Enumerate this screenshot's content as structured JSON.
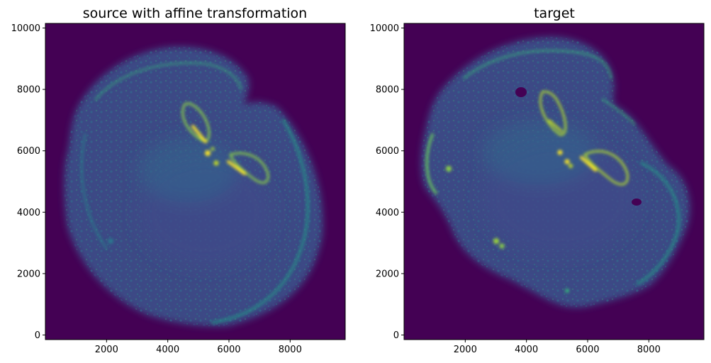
{
  "chart_data": [
    {
      "type": "heatmap",
      "title": "source with affine transformation",
      "colormap": "viridis",
      "background_color": "#440154",
      "xlabel": "",
      "ylabel": "",
      "xlim": [
        0,
        9800
      ],
      "ylim": [
        -150,
        10150
      ],
      "x_ticks": [
        2000,
        4000,
        6000,
        8000
      ],
      "y_ticks": [
        0,
        2000,
        4000,
        6000,
        8000,
        10000
      ],
      "tick_labels_x": [
        "2000",
        "4000",
        "6000",
        "8000"
      ],
      "tick_labels_y": [
        "0",
        "2000",
        "4000",
        "6000",
        "8000",
        "10000"
      ],
      "grid": false
    },
    {
      "type": "heatmap",
      "title": "target",
      "colormap": "viridis",
      "background_color": "#440154",
      "xlabel": "",
      "ylabel": "",
      "xlim": [
        0,
        9800
      ],
      "ylim": [
        -150,
        10150
      ],
      "x_ticks": [
        2000,
        4000,
        6000,
        8000
      ],
      "y_ticks": [
        0,
        2000,
        4000,
        6000,
        8000,
        10000
      ],
      "tick_labels_x": [
        "2000",
        "4000",
        "6000",
        "8000"
      ],
      "tick_labels_y": [
        "0",
        "2000",
        "4000",
        "6000",
        "8000",
        "10000"
      ],
      "grid": false
    }
  ]
}
